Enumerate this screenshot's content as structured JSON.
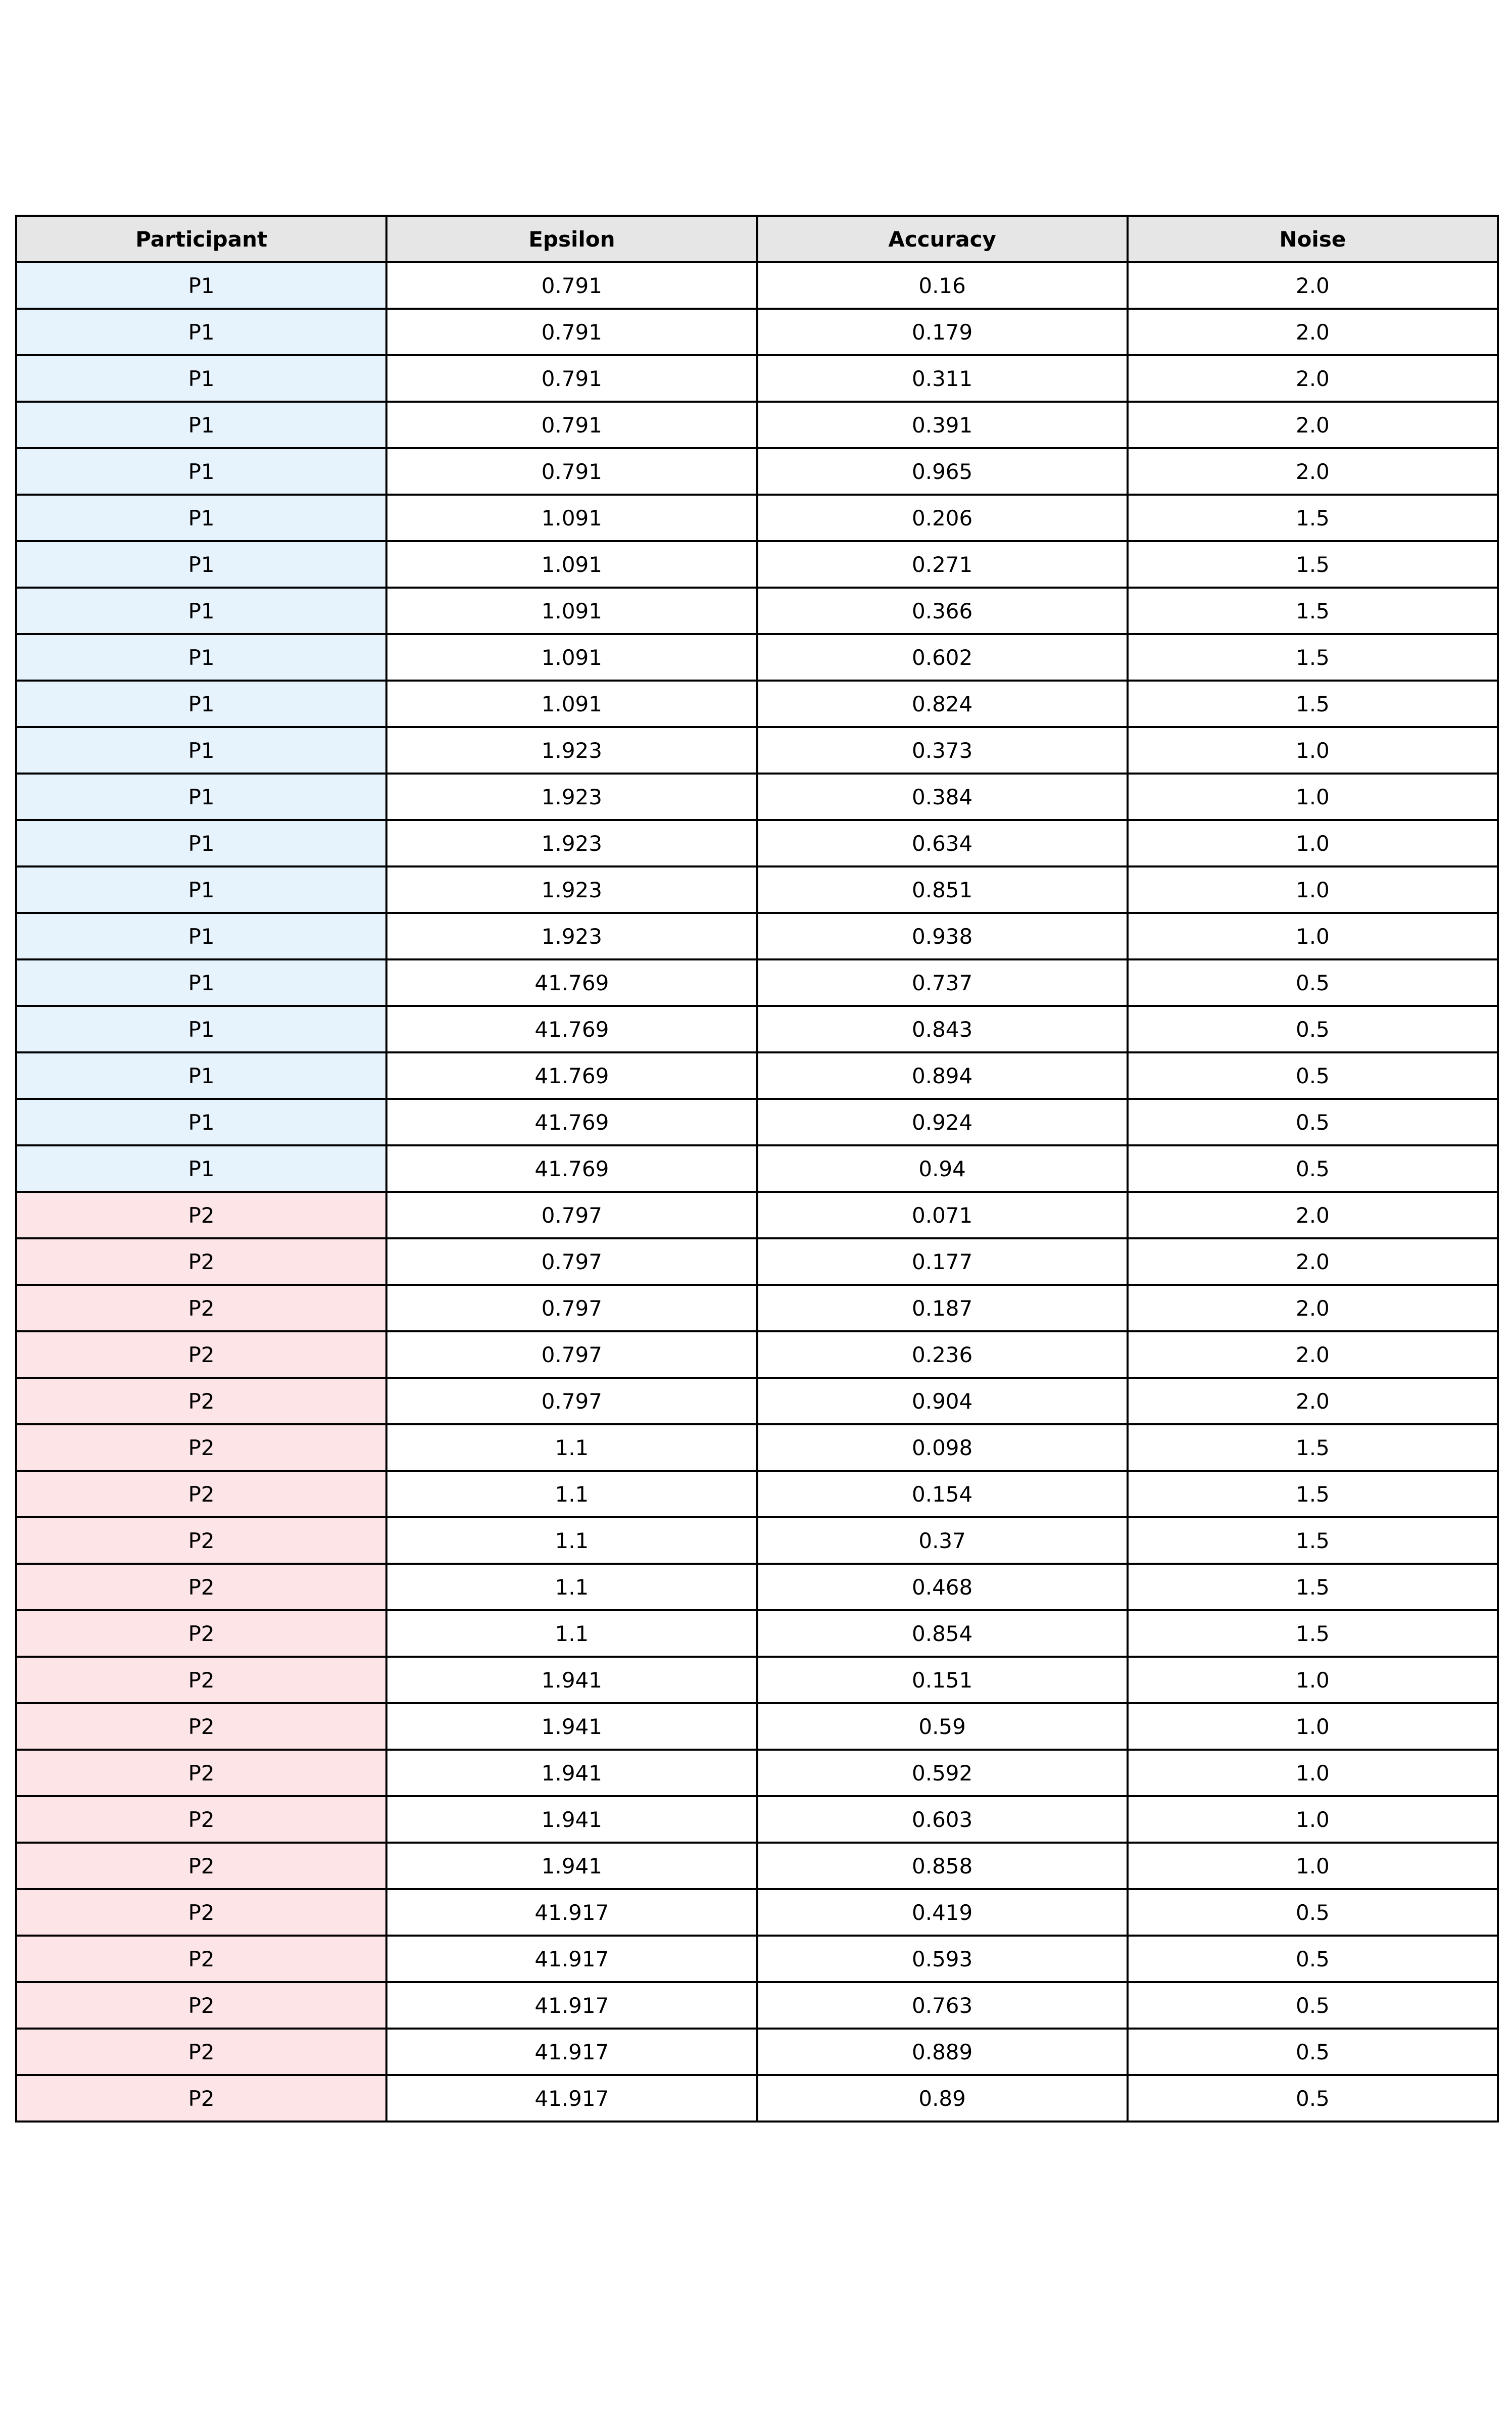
{
  "chart_data": {
    "type": "table",
    "columns": [
      "Participant",
      "Epsilon",
      "Accuracy",
      "Noise"
    ],
    "participant_colors": {
      "P1": "#e6f2fc",
      "P2": "#fde4e6"
    },
    "header_color": "#e6e6e6",
    "rows": [
      [
        "P1",
        "0.791",
        "0.16",
        "2.0"
      ],
      [
        "P1",
        "0.791",
        "0.179",
        "2.0"
      ],
      [
        "P1",
        "0.791",
        "0.311",
        "2.0"
      ],
      [
        "P1",
        "0.791",
        "0.391",
        "2.0"
      ],
      [
        "P1",
        "0.791",
        "0.965",
        "2.0"
      ],
      [
        "P1",
        "1.091",
        "0.206",
        "1.5"
      ],
      [
        "P1",
        "1.091",
        "0.271",
        "1.5"
      ],
      [
        "P1",
        "1.091",
        "0.366",
        "1.5"
      ],
      [
        "P1",
        "1.091",
        "0.602",
        "1.5"
      ],
      [
        "P1",
        "1.091",
        "0.824",
        "1.5"
      ],
      [
        "P1",
        "1.923",
        "0.373",
        "1.0"
      ],
      [
        "P1",
        "1.923",
        "0.384",
        "1.0"
      ],
      [
        "P1",
        "1.923",
        "0.634",
        "1.0"
      ],
      [
        "P1",
        "1.923",
        "0.851",
        "1.0"
      ],
      [
        "P1",
        "1.923",
        "0.938",
        "1.0"
      ],
      [
        "P1",
        "41.769",
        "0.737",
        "0.5"
      ],
      [
        "P1",
        "41.769",
        "0.843",
        "0.5"
      ],
      [
        "P1",
        "41.769",
        "0.894",
        "0.5"
      ],
      [
        "P1",
        "41.769",
        "0.924",
        "0.5"
      ],
      [
        "P1",
        "41.769",
        "0.94",
        "0.5"
      ],
      [
        "P2",
        "0.797",
        "0.071",
        "2.0"
      ],
      [
        "P2",
        "0.797",
        "0.177",
        "2.0"
      ],
      [
        "P2",
        "0.797",
        "0.187",
        "2.0"
      ],
      [
        "P2",
        "0.797",
        "0.236",
        "2.0"
      ],
      [
        "P2",
        "0.797",
        "0.904",
        "2.0"
      ],
      [
        "P2",
        "1.1",
        "0.098",
        "1.5"
      ],
      [
        "P2",
        "1.1",
        "0.154",
        "1.5"
      ],
      [
        "P2",
        "1.1",
        "0.37",
        "1.5"
      ],
      [
        "P2",
        "1.1",
        "0.468",
        "1.5"
      ],
      [
        "P2",
        "1.1",
        "0.854",
        "1.5"
      ],
      [
        "P2",
        "1.941",
        "0.151",
        "1.0"
      ],
      [
        "P2",
        "1.941",
        "0.59",
        "1.0"
      ],
      [
        "P2",
        "1.941",
        "0.592",
        "1.0"
      ],
      [
        "P2",
        "1.941",
        "0.603",
        "1.0"
      ],
      [
        "P2",
        "1.941",
        "0.858",
        "1.0"
      ],
      [
        "P2",
        "41.917",
        "0.419",
        "0.5"
      ],
      [
        "P2",
        "41.917",
        "0.593",
        "0.5"
      ],
      [
        "P2",
        "41.917",
        "0.763",
        "0.5"
      ],
      [
        "P2",
        "41.917",
        "0.889",
        "0.5"
      ],
      [
        "P2",
        "41.917",
        "0.89",
        "0.5"
      ]
    ]
  }
}
